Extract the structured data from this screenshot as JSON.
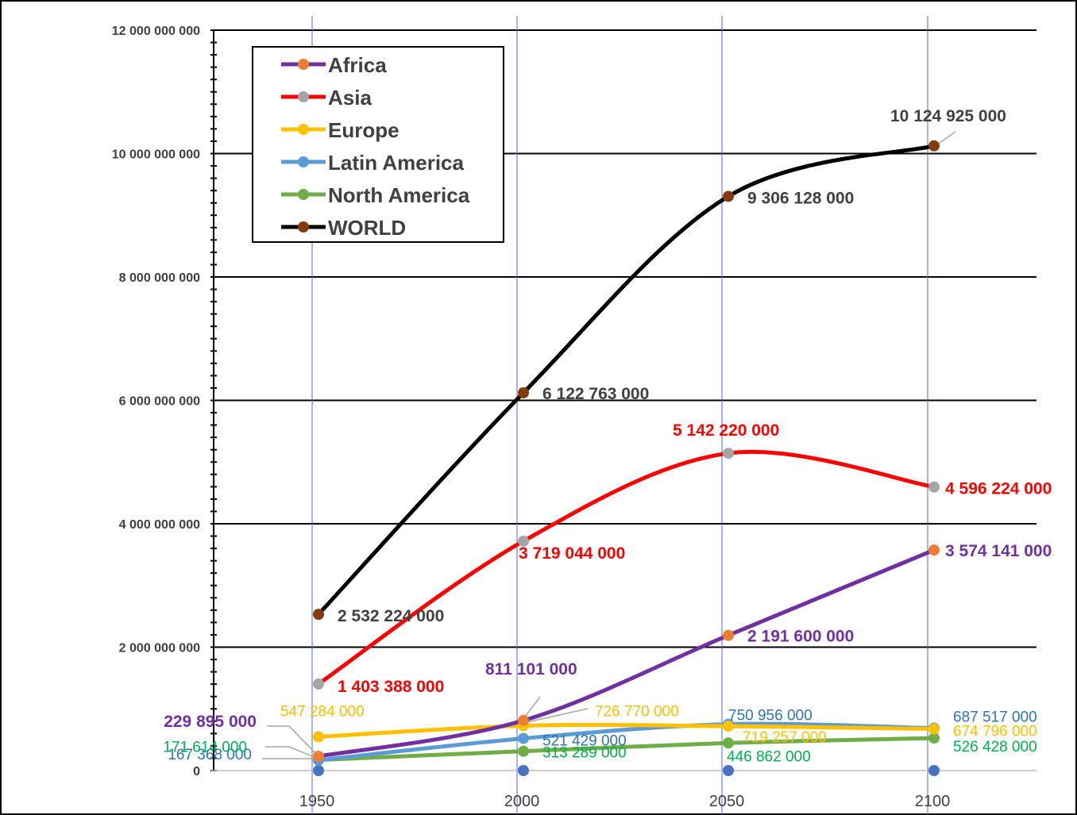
{
  "chart_data": {
    "type": "line",
    "x": [
      1950,
      2000,
      2050,
      2100
    ],
    "x_tick_labels": [
      "1950",
      "2000",
      "2050",
      "2100"
    ],
    "y_tick_labels": [
      "0",
      "2 000 000 000",
      "4 000 000 000",
      "6 000 000 000",
      "8 000 000 000",
      "10 000 000 000",
      "12 000 000 000"
    ],
    "ylim": [
      0,
      12000000000
    ],
    "grid": true,
    "legend_position": "top-left",
    "series": [
      {
        "name": "Africa",
        "line_color": "#7030A0",
        "marker_color": "#ED7D31",
        "label_color": "#7030A0",
        "values": [
          229895000,
          811101000,
          2191600000,
          3574141000
        ],
        "labels": [
          "229 895 000",
          "811 101 000",
          "2 191 600 000",
          "3 574 141 000"
        ]
      },
      {
        "name": "Asia",
        "line_color": "#FF0000",
        "marker_color": "#A5A5A5",
        "label_color": "#FF0000",
        "values": [
          1403388000,
          3719044000,
          5142220000,
          4596224000
        ],
        "labels": [
          "1 403 388 000",
          "3 719 044 000",
          "5 142 220 000",
          "4 596 224 000"
        ]
      },
      {
        "name": "Europe",
        "line_color": "#FFC000",
        "marker_color": "#FFC000",
        "label_color": "#FFC000",
        "values": [
          547284000,
          726770000,
          719257000,
          674796000
        ],
        "labels": [
          "547 284 000",
          "726 770 000",
          "719 257 000",
          "674 796 000"
        ]
      },
      {
        "name": "Latin America",
        "line_color": "#5B9BD5",
        "marker_color": "#5B9BD5",
        "label_color": "#2E75B6",
        "values": [
          167368000,
          521429000,
          750956000,
          687517000
        ],
        "labels": [
          "167 368 000",
          "521 429 000",
          "750 956 000",
          "687 517 000"
        ]
      },
      {
        "name": "North America",
        "line_color": "#70AD47",
        "marker_color": "#70AD47",
        "label_color": "#00B050",
        "values": [
          171614000,
          313289000,
          446862000,
          526428000
        ],
        "labels": [
          "171 614 000",
          "313 289 000",
          "446 862 000",
          "526 428 000"
        ]
      },
      {
        "name": "WORLD",
        "line_color": "#000000",
        "marker_color": "#843C0C",
        "label_color": "#404040",
        "values": [
          2532224000,
          6122763000,
          9306128000,
          10124925000
        ],
        "labels": [
          "2 532 224 000",
          "6 122 763 000",
          "9 306 128 000",
          "10 124 925 000"
        ]
      }
    ],
    "x_axis_marker_color": "#4472C4"
  }
}
